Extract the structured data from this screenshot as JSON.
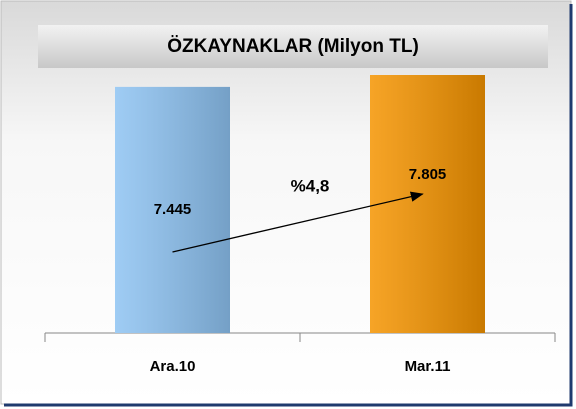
{
  "chart_data": {
    "type": "bar",
    "title": "ÖZKAYNAKLAR (Milyon TL)",
    "categories": [
      "Ara.10",
      "Mar.11"
    ],
    "values": [
      7445,
      7805
    ],
    "value_labels": [
      "7.445",
      "7.805"
    ],
    "colors": [
      "#8ec3f2",
      "#f59400"
    ],
    "annotation": "%4,8"
  }
}
